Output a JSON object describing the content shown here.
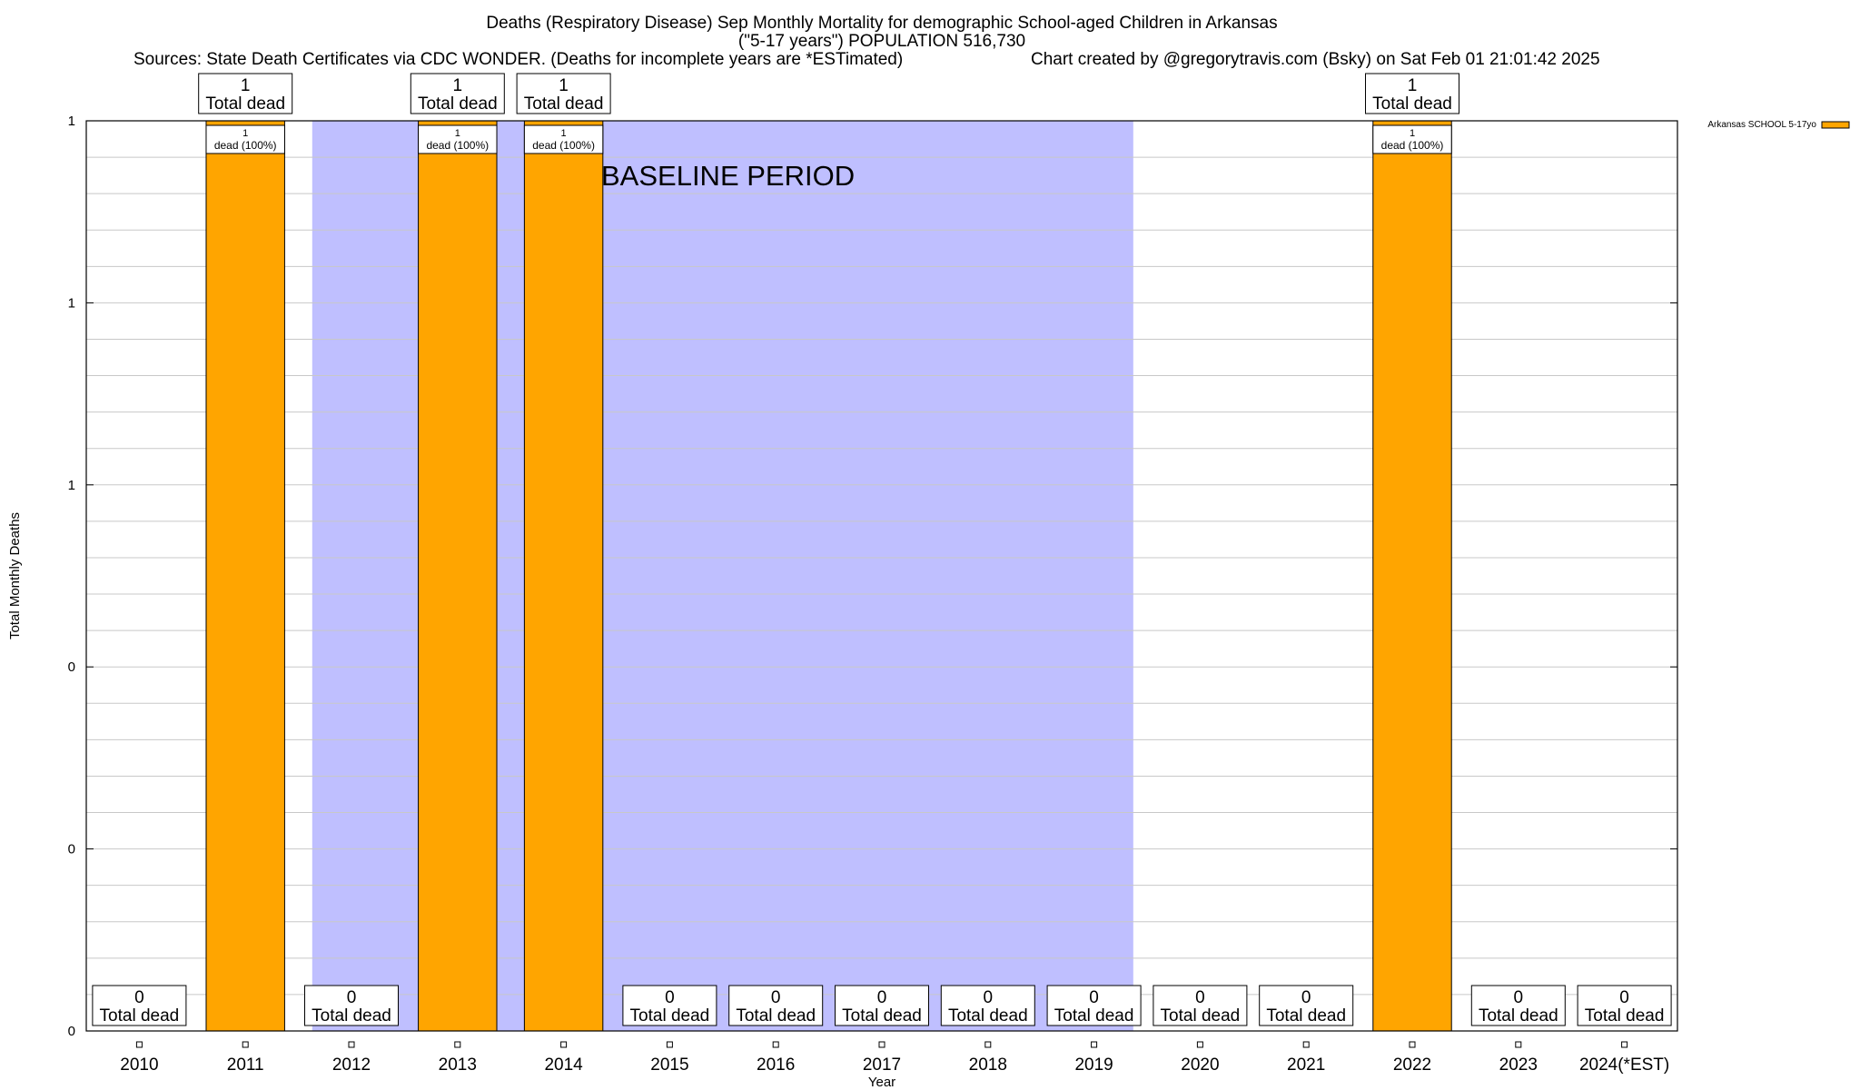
{
  "chart_data": {
    "type": "bar",
    "title": "Deaths (Respiratory Disease) Sep Monthly Mortality for demographic School-aged Children in Arkansas",
    "subtitle": "(\"5-17 years\") POPULATION 516,730",
    "sources": "Sources: State Death Certificates via CDC WONDER. (Deaths for incomplete years are *ESTimated)",
    "credit": "Chart created by @gregorytravis.com (Bsky) on Sat Feb 01 21:01:42 2025",
    "xlabel": "Year",
    "ylabel": "Total Monthly Deaths",
    "ylim": [
      0,
      1
    ],
    "y_tick_values": [
      0,
      0.2,
      0.4,
      0.6,
      0.8,
      1.0
    ],
    "y_tick_labels": [
      "0",
      "0",
      "0",
      "1",
      "1",
      "1"
    ],
    "categories": [
      "2010",
      "2011",
      "2012",
      "2013",
      "2014",
      "2015",
      "2016",
      "2017",
      "2018",
      "2019",
      "2020",
      "2021",
      "2022",
      "2023",
      "2024(*EST)"
    ],
    "series": [
      {
        "name": "Arkansas SCHOOL 5-17yo",
        "color": "#ffa500",
        "values": [
          0,
          1,
          0,
          1,
          1,
          0,
          0,
          0,
          0,
          0,
          0,
          0,
          1,
          0,
          0
        ],
        "segment_labels": [
          "",
          "1\ndead (100%)",
          "",
          "1\ndead (100%)",
          "1\ndead (100%)",
          "",
          "",
          "",
          "",
          "",
          "",
          "",
          "1\ndead (100%)",
          "",
          ""
        ]
      }
    ],
    "total_labels": [
      "0\nTotal dead",
      "1\nTotal dead",
      "0\nTotal dead",
      "1\nTotal dead",
      "1\nTotal dead",
      "0\nTotal dead",
      "0\nTotal dead",
      "0\nTotal dead",
      "0\nTotal dead",
      "0\nTotal dead",
      "0\nTotal dead",
      "0\nTotal dead",
      "1\nTotal dead",
      "0\nTotal dead",
      "0\nTotal dead"
    ],
    "baseline": {
      "label": "BASELINE PERIOD",
      "from": "2012",
      "to": "2019",
      "color": "#bfbfff"
    },
    "legend": "top-right",
    "grid": true
  }
}
